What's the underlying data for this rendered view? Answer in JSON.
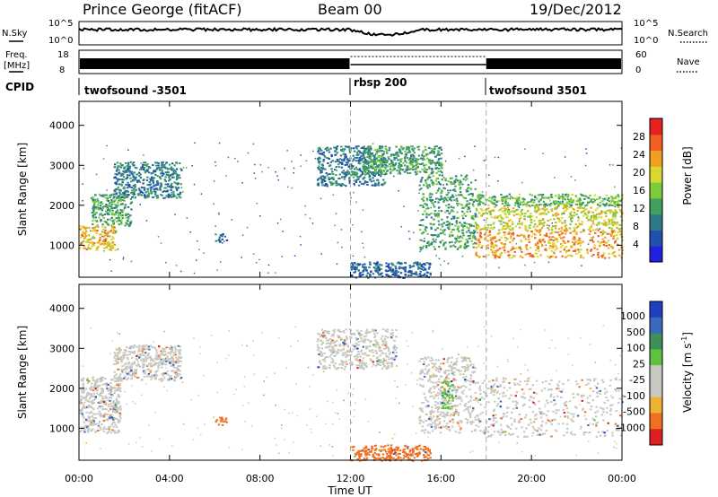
{
  "header": {
    "station": "Prince George (fitACF)",
    "beam": "Beam 00",
    "date": "19/Dec/2012"
  },
  "side_labels": {
    "nsky": "N.Sky",
    "nsearch": "N.Search",
    "freq": "Freq.",
    "freq_unit": "[MHz]",
    "nave": "Nave",
    "cpid": "CPID"
  },
  "noise_axis": {
    "left_ticks": [
      "10^5",
      "10^0"
    ],
    "right_ticks": [
      "10^5",
      "10^0"
    ]
  },
  "freq_axis": {
    "left_ticks": [
      "18",
      "8"
    ],
    "right_ticks": [
      "60",
      "0"
    ]
  },
  "cpid_segments": [
    {
      "label": "twofsound -3501",
      "start_hour": 0
    },
    {
      "label": "rbsp 200",
      "start_hour": 12
    },
    {
      "label": "twofsound 3501",
      "start_hour": 18
    }
  ],
  "xaxis": {
    "label": "Time UT",
    "ticks": [
      "00:00",
      "04:00",
      "08:00",
      "12:00",
      "16:00",
      "20:00",
      "00:00"
    ]
  },
  "chart_data": [
    {
      "type": "heatmap",
      "title": "",
      "ylabel": "Slant Range [km]",
      "xlabel": "Time UT",
      "xlim_hours": [
        0,
        24
      ],
      "ylim": [
        200,
        4600
      ],
      "yticks": [
        1000,
        2000,
        3000,
        4000
      ],
      "colorbar": {
        "label": "Power [dB]",
        "ticks": [
          "28",
          "24",
          "20",
          "16",
          "12",
          "8",
          "4"
        ],
        "colors": [
          "#2020e0",
          "#2050b0",
          "#2f7a8a",
          "#3fa060",
          "#7ccc3a",
          "#d8d830",
          "#f0a020",
          "#f06020",
          "#e82020"
        ]
      },
      "echo_regions": [
        {
          "hours": [
            0.0,
            1.6
          ],
          "range_km": [
            900,
            1500
          ],
          "value_db": 24
        },
        {
          "hours": [
            0.5,
            2.3
          ],
          "range_km": [
            1500,
            2300
          ],
          "value_db": 14
        },
        {
          "hours": [
            1.5,
            4.5
          ],
          "range_km": [
            2200,
            3100
          ],
          "value_db": 10
        },
        {
          "hours": [
            6.0,
            6.5
          ],
          "range_km": [
            1100,
            1300
          ],
          "value_db": 8
        },
        {
          "hours": [
            10.5,
            13.5
          ],
          "range_km": [
            2500,
            3500
          ],
          "value_db": 10
        },
        {
          "hours": [
            12.5,
            16.0
          ],
          "range_km": [
            2800,
            3500
          ],
          "value_db": 14
        },
        {
          "hours": [
            15.0,
            17.5
          ],
          "range_km": [
            900,
            2800
          ],
          "value_db": 14
        },
        {
          "hours": [
            12.0,
            15.5
          ],
          "range_km": [
            200,
            600
          ],
          "value_db": 8
        },
        {
          "hours": [
            17.5,
            24.0
          ],
          "range_km": [
            700,
            1400
          ],
          "value_db": 26
        },
        {
          "hours": [
            17.5,
            24.0
          ],
          "range_km": [
            1400,
            2000
          ],
          "value_db": 22
        },
        {
          "hours": [
            17.5,
            24.0
          ],
          "range_km": [
            2000,
            2300
          ],
          "value_db": 16
        }
      ]
    },
    {
      "type": "heatmap",
      "title": "",
      "ylabel": "Slant Range [km]",
      "xlabel": "Time UT",
      "xlim_hours": [
        0,
        24
      ],
      "ylim": [
        200,
        4600
      ],
      "yticks": [
        1000,
        2000,
        3000,
        4000
      ],
      "colorbar": {
        "label": "Velocity [m s-1]",
        "label_main": "Velocity  [m s",
        "label_sup": "-1",
        "label_end": "]",
        "ticks": [
          "1000",
          "500",
          "100",
          "25",
          "-25",
          "-100",
          "-500",
          "-1000"
        ],
        "colors": [
          "#2040c0",
          "#3a6ac0",
          "#3f8f5a",
          "#60c040",
          "#c8c8c0",
          "#c8c8c0",
          "#f0b030",
          "#f07020",
          "#e02020"
        ]
      },
      "echo_regions": [
        {
          "hours": [
            0.0,
            1.8
          ],
          "range_km": [
            900,
            2300
          ],
          "value_ms": 0
        },
        {
          "hours": [
            1.5,
            4.5
          ],
          "range_km": [
            2200,
            3100
          ],
          "value_ms": 0
        },
        {
          "hours": [
            6.0,
            6.5
          ],
          "range_km": [
            1100,
            1300
          ],
          "value_ms": -200
        },
        {
          "hours": [
            10.5,
            14.0
          ],
          "range_km": [
            2500,
            3500
          ],
          "value_ms": 0
        },
        {
          "hours": [
            15.0,
            17.5
          ],
          "range_km": [
            900,
            2800
          ],
          "value_ms": 0
        },
        {
          "hours": [
            16.0,
            16.5
          ],
          "range_km": [
            1500,
            2200
          ],
          "value_ms": 80
        },
        {
          "hours": [
            12.0,
            15.5
          ],
          "range_km": [
            200,
            600
          ],
          "value_ms": -150
        },
        {
          "hours": [
            17.5,
            24.0
          ],
          "range_km": [
            800,
            2300
          ],
          "value_ms": 0
        }
      ]
    }
  ]
}
